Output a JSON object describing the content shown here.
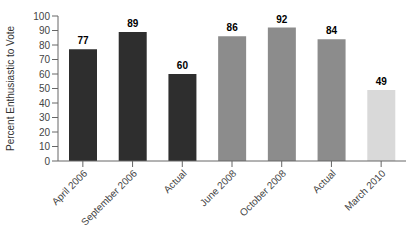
{
  "chart_data": {
    "type": "bar",
    "ylabel": "Percent Enthusiastic to Vote",
    "categories": [
      "April 2006",
      "September 2006",
      "Actual",
      "June 2008",
      "October 2008",
      "Actual",
      "March 2010"
    ],
    "values": [
      77,
      89,
      60,
      86,
      92,
      84,
      49
    ],
    "colors": [
      "#2e2e2e",
      "#2e2e2e",
      "#2e2e2e",
      "#8c8c8c",
      "#8c8c8c",
      "#8c8c8c",
      "#d9d9d9"
    ],
    "ylim": [
      0,
      100
    ],
    "yticks": [
      0,
      10,
      20,
      30,
      40,
      50,
      60,
      70,
      80,
      90,
      100
    ],
    "data_labels": true,
    "grid": false
  }
}
